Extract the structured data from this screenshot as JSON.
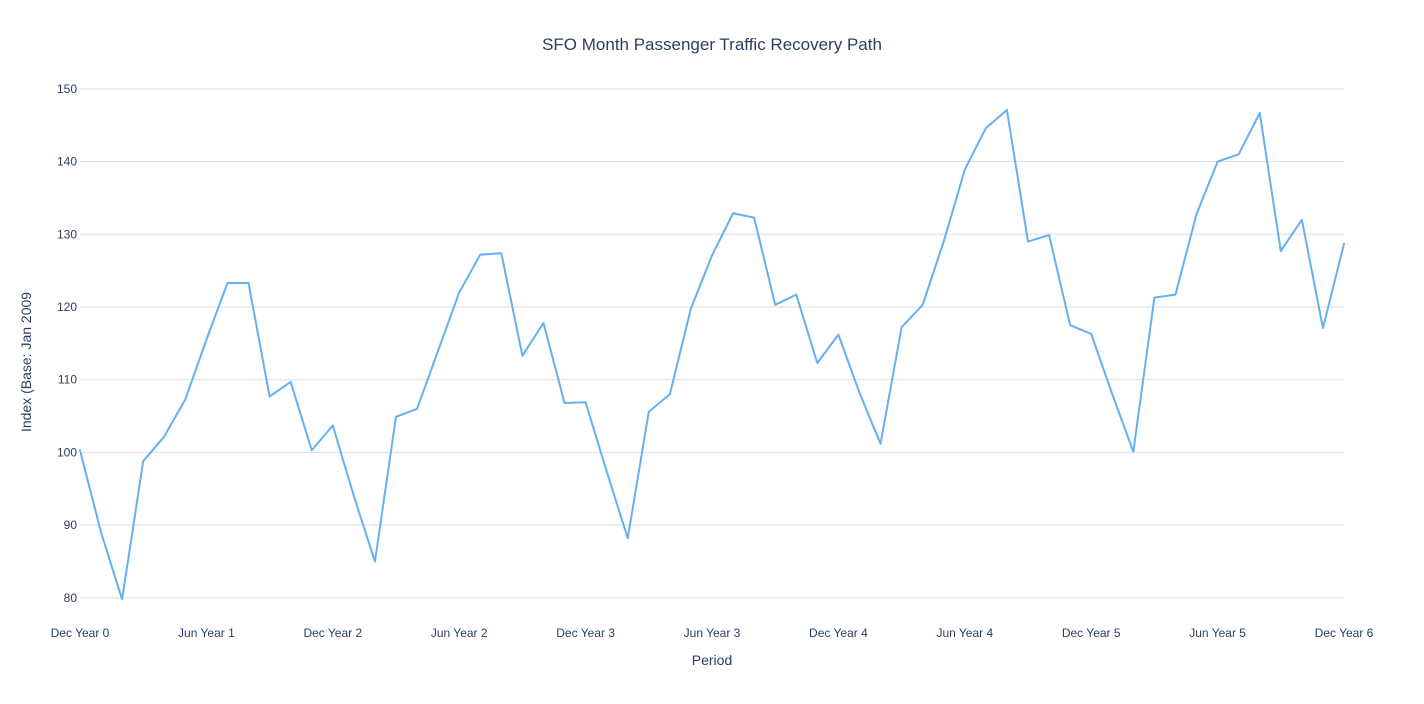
{
  "chart_data": {
    "type": "line",
    "title": "SFO Month Passenger Traffic Recovery Path",
    "xlabel": "Period",
    "ylabel": "Index (Base: Jan 2009",
    "x_tick_labels": [
      "Dec Year 0",
      "Jun Year 1",
      "Dec Year 2",
      "Jun Year 2",
      "Dec Year 3",
      "Jun Year 3",
      "Dec Year 4",
      "Jun Year 4",
      "Dec Year 5",
      "Jun Year 5",
      "Dec Year 6"
    ],
    "y_ticks": [
      80,
      90,
      100,
      110,
      120,
      130,
      140,
      150
    ],
    "ylim": [
      77.5,
      151.5
    ],
    "x_period_count": 60,
    "grid": "y-axis gridlines on",
    "legend": "none",
    "series": [
      {
        "color": "#64b0f2",
        "values": [
          100.3,
          89.0,
          79.8,
          98.8,
          102.2,
          107.3,
          115.5,
          123.3,
          123.3,
          107.7,
          109.7,
          100.3,
          103.7,
          94.0,
          85.0,
          104.9,
          106.0,
          114.0,
          122.0,
          127.2,
          127.4,
          113.3,
          117.8,
          106.8,
          106.9,
          97.4,
          88.2,
          105.6,
          108.0,
          119.8,
          127.1,
          132.9,
          132.3,
          120.3,
          121.7,
          112.3,
          116.2,
          108.2,
          101.2,
          117.2,
          120.3,
          129.0,
          138.9,
          144.6,
          147.1,
          129.0,
          129.9,
          117.5,
          116.3,
          108.0,
          100.1,
          121.3,
          121.7,
          132.8,
          140.0,
          141.0,
          146.7,
          127.7,
          132.0,
          117.1,
          128.7
        ]
      }
    ]
  }
}
